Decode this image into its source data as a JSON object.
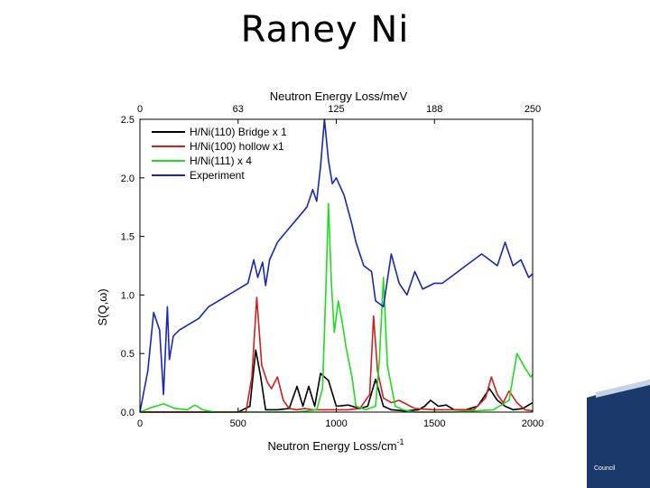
{
  "slide": {
    "title": "Raney Ni"
  },
  "logo": {
    "text": "Council"
  },
  "chart_data": {
    "type": "line",
    "top_axis_label": "Neutron Energy Loss/meV",
    "top_ticks": [
      "0",
      "63",
      "125",
      "188",
      "250"
    ],
    "xlabel": "Neutron Energy Loss/cm",
    "xlabel_superscript": "-1",
    "ylabel": "S(Q,ω)",
    "xlim": [
      0,
      2000
    ],
    "ylim": [
      0,
      2.5
    ],
    "xticks": [
      0,
      500,
      1000,
      1500,
      2000
    ],
    "yticks": [
      "0.0",
      "0.5",
      "1.0",
      "1.5",
      "2.0",
      "2.5"
    ],
    "grid": false,
    "legend_position": "top-left",
    "series": [
      {
        "name": "H/Ni(110) Bridge x 1",
        "color": "#000000",
        "x": [
          0,
          300,
          500,
          560,
          590,
          615,
          640,
          700,
          760,
          800,
          830,
          860,
          890,
          920,
          960,
          1000,
          1060,
          1120,
          1160,
          1200,
          1240,
          1280,
          1350,
          1420,
          1450,
          1480,
          1520,
          1560,
          1600,
          1660,
          1720,
          1780,
          1820,
          1860,
          1900,
          1950,
          2000
        ],
        "y": [
          0,
          0,
          0,
          0.05,
          0.53,
          0.3,
          0.02,
          0.02,
          0.03,
          0.22,
          0.05,
          0.22,
          0.05,
          0.33,
          0.27,
          0.05,
          0.06,
          0.03,
          0.05,
          0.28,
          0.05,
          0.02,
          0.01,
          0.02,
          0.05,
          0.1,
          0.05,
          0.06,
          0.02,
          0.02,
          0.05,
          0.2,
          0.1,
          0.05,
          0.02,
          0.03,
          0.08
        ]
      },
      {
        "name": "H/Ni(100) hollow x1",
        "color": "#d21e1e",
        "x": [
          0,
          400,
          540,
          570,
          595,
          620,
          650,
          670,
          700,
          730,
          760,
          800,
          840,
          880,
          920,
          960,
          1000,
          1060,
          1120,
          1170,
          1190,
          1210,
          1240,
          1280,
          1320,
          1400,
          1500,
          1600,
          1700,
          1760,
          1790,
          1820,
          1850,
          1880,
          1920,
          1960,
          2000
        ],
        "y": [
          0,
          0,
          0,
          0.3,
          0.98,
          0.4,
          0.25,
          0.2,
          0.3,
          0.1,
          0.03,
          0.02,
          0.03,
          0.02,
          0.02,
          0.02,
          0.02,
          0.02,
          0.03,
          0.15,
          0.82,
          0.35,
          0.12,
          0.08,
          0.1,
          0.03,
          0.02,
          0.02,
          0.02,
          0.12,
          0.3,
          0.15,
          0.08,
          0.18,
          0.08,
          0.02,
          0.01
        ]
      },
      {
        "name": "H/Ni(111) x 4",
        "color": "#1edc1e",
        "x": [
          0,
          60,
          120,
          180,
          240,
          280,
          320,
          380,
          500,
          800,
          900,
          930,
          950,
          960,
          975,
          990,
          1010,
          1030,
          1050,
          1080,
          1100,
          1150,
          1200,
          1220,
          1240,
          1260,
          1300,
          1340,
          1400,
          1600,
          1800,
          1880,
          1920,
          1960,
          1990,
          2000
        ],
        "y": [
          0,
          0.04,
          0.07,
          0.03,
          0.02,
          0.06,
          0.02,
          0,
          0,
          0,
          0.02,
          0.2,
          1.2,
          1.78,
          1.1,
          0.68,
          0.95,
          0.77,
          0.55,
          0.3,
          0.05,
          0.02,
          0.05,
          0.45,
          1.15,
          0.4,
          0.05,
          0.02,
          0,
          0,
          0.02,
          0.1,
          0.5,
          0.38,
          0.3,
          0.32
        ]
      },
      {
        "name": "Experiment",
        "color": "#1a26b8",
        "x": [
          0,
          40,
          70,
          100,
          120,
          140,
          150,
          170,
          200,
          250,
          300,
          350,
          400,
          450,
          500,
          550,
          580,
          600,
          625,
          640,
          660,
          700,
          750,
          800,
          850,
          880,
          900,
          920,
          940,
          960,
          980,
          1000,
          1040,
          1080,
          1100,
          1140,
          1180,
          1200,
          1240,
          1280,
          1320,
          1360,
          1400,
          1440,
          1500,
          1540,
          1580,
          1620,
          1660,
          1700,
          1740,
          1780,
          1820,
          1860,
          1900,
          1940,
          1980,
          2000
        ],
        "y": [
          0,
          0.35,
          0.85,
          0.7,
          0.15,
          0.9,
          0.45,
          0.65,
          0.7,
          0.75,
          0.8,
          0.9,
          0.95,
          1.0,
          1.05,
          1.1,
          1.3,
          1.15,
          1.28,
          1.08,
          1.3,
          1.45,
          1.55,
          1.65,
          1.75,
          1.9,
          1.8,
          2.1,
          2.5,
          2.15,
          1.95,
          2.0,
          1.85,
          1.6,
          1.45,
          1.25,
          1.2,
          0.95,
          0.9,
          1.35,
          1.1,
          1.0,
          1.2,
          1.05,
          1.1,
          1.1,
          1.15,
          1.2,
          1.25,
          1.3,
          1.35,
          1.3,
          1.25,
          1.45,
          1.25,
          1.3,
          1.15,
          1.18
        ]
      }
    ]
  }
}
